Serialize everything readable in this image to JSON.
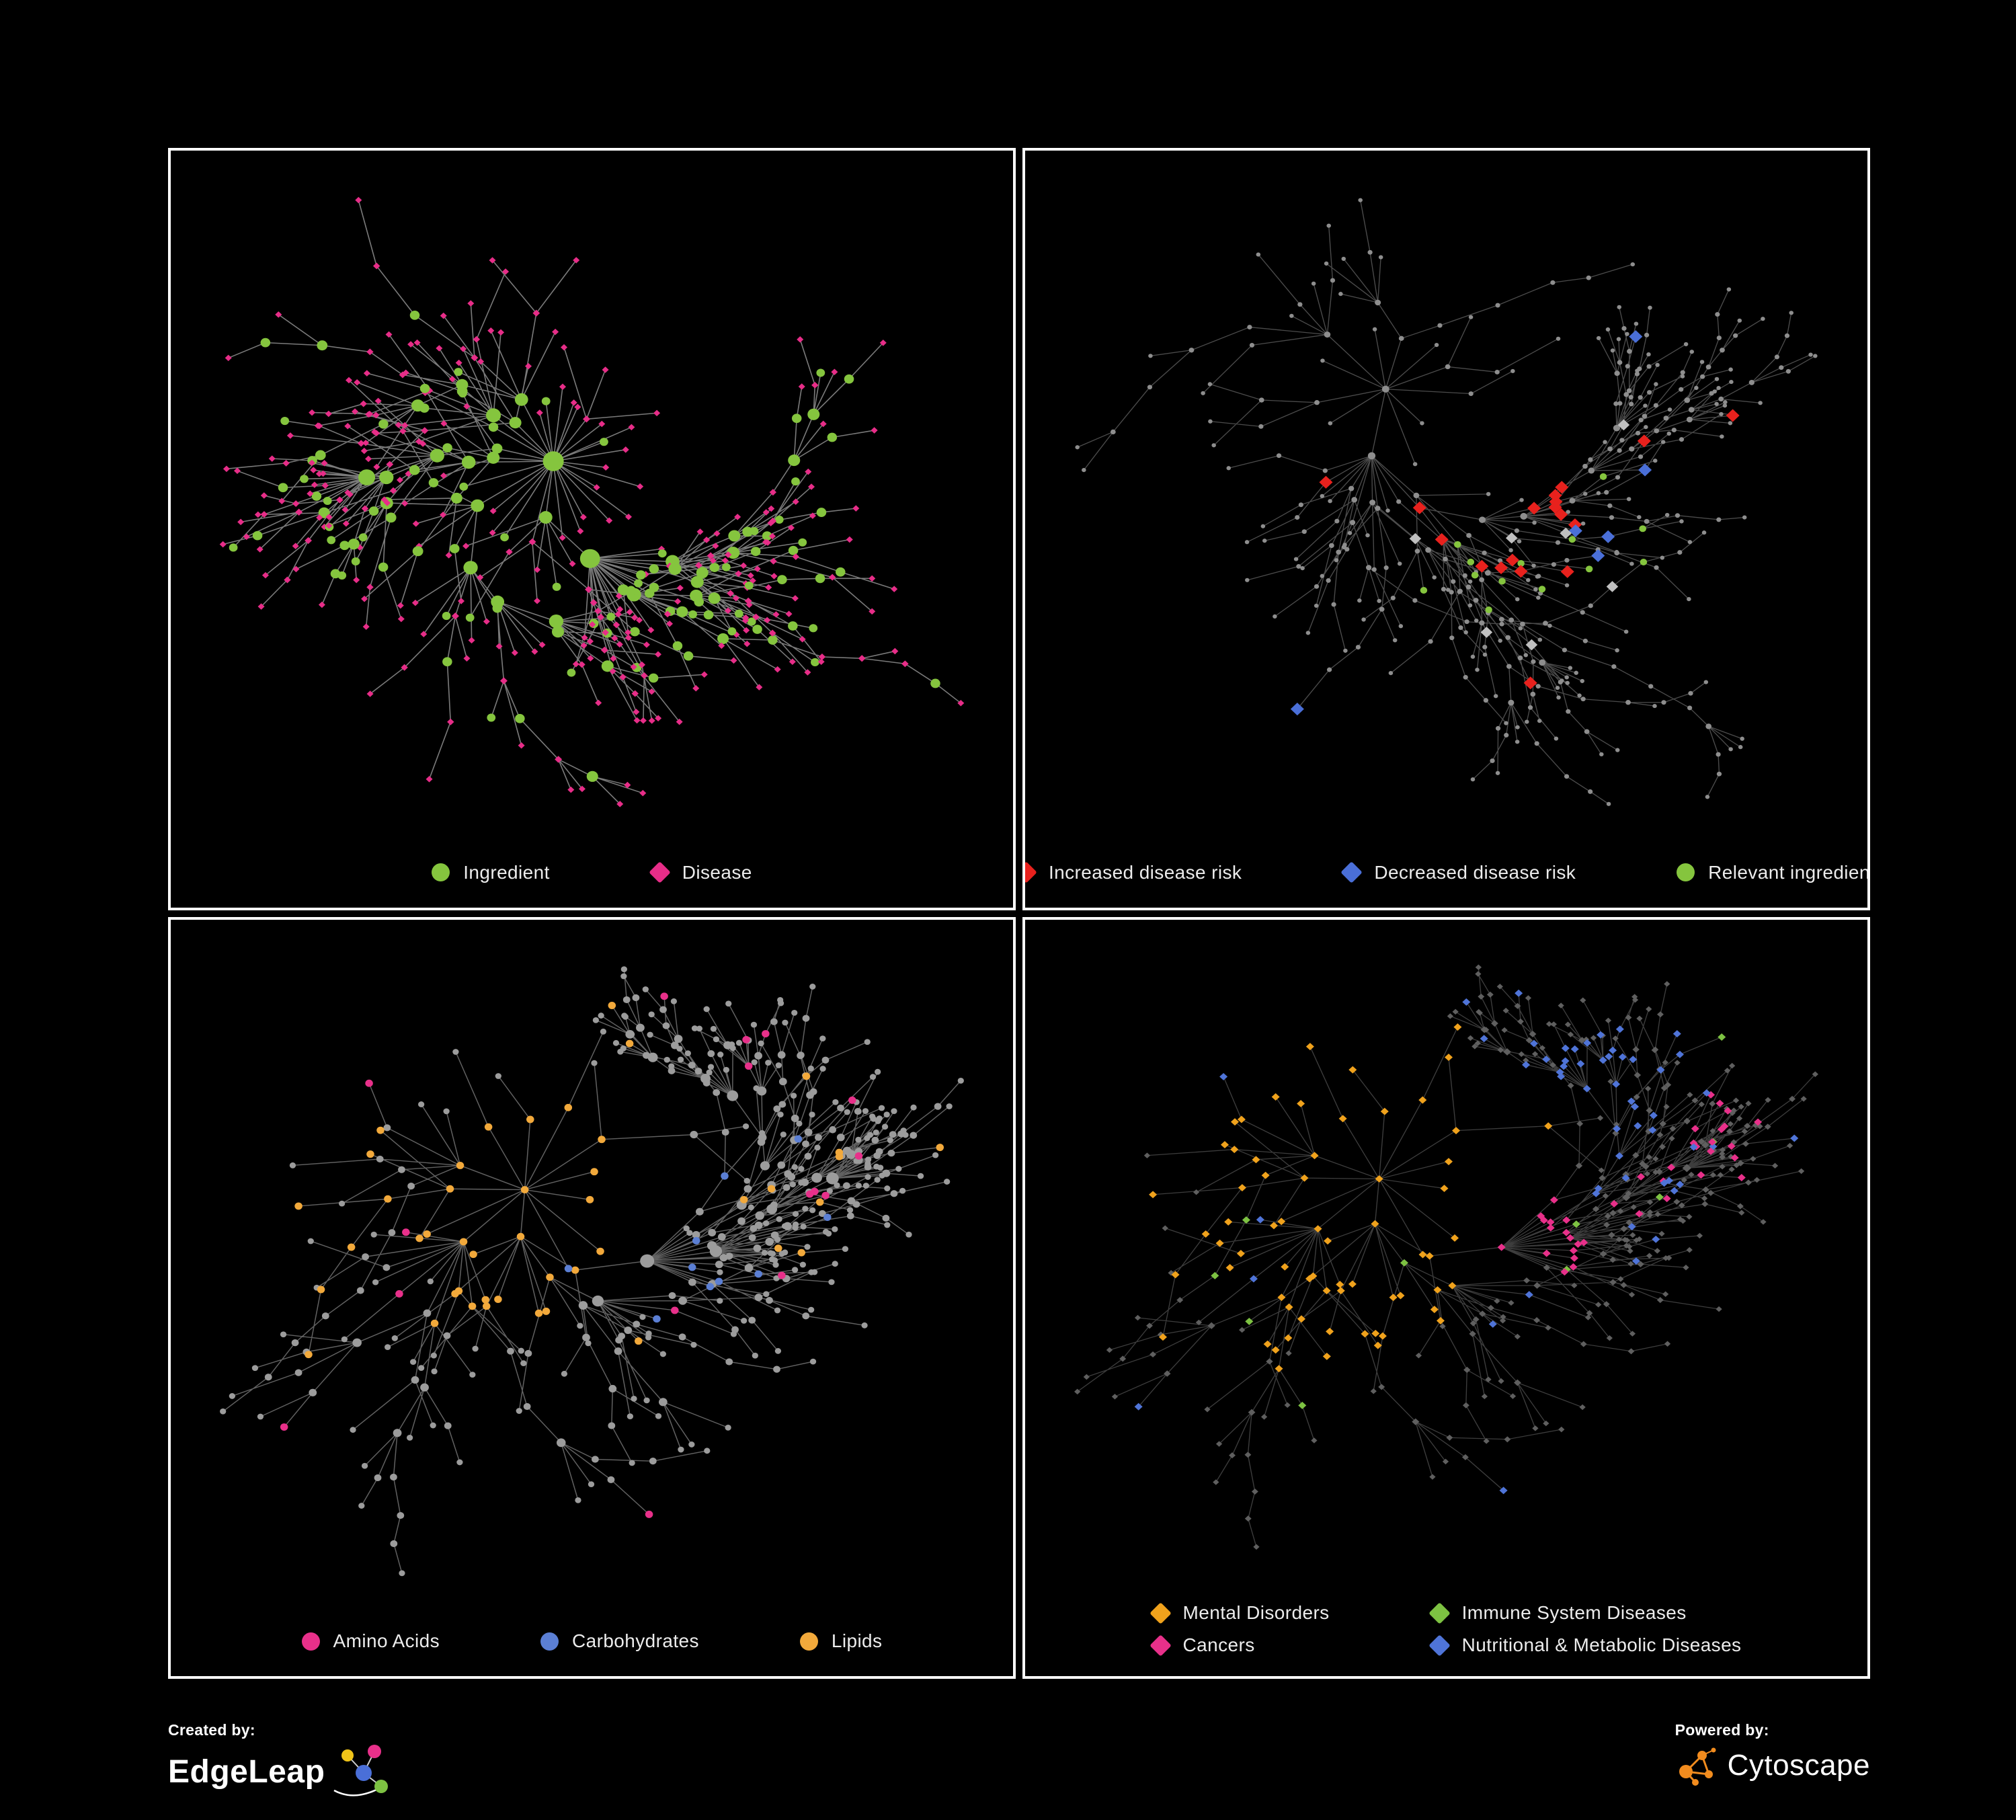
{
  "branding": {
    "created_by_label": "Created by:",
    "created_by_name": "EdgeLeap",
    "powered_by_label": "Powered by:",
    "powered_by_name": "Cytoscape"
  },
  "panels": [
    {
      "legend": [
        {
          "label": "Ingredient",
          "shape": "circle",
          "color": "#85c53e"
        },
        {
          "label": "Disease",
          "shape": "diamond",
          "color": "#e72d88"
        }
      ],
      "network": {
        "seed": 7,
        "node_count": 430,
        "chain_prob": 0.18,
        "edge_len": 90,
        "decay": 0.92,
        "edge_color": "#8f8f8f",
        "edge_opacity": 0.85,
        "edge_width": 1.3,
        "assign_mode": "leaf-hub",
        "groups": [
          {
            "shape": "circle",
            "color": "#85c53e",
            "size": 3.4,
            "size_by_degree": 1.7
          },
          {
            "shape": "diamond",
            "color": "#e72d88",
            "size": 3.6,
            "size_by_degree": 0.4
          }
        ],
        "leaf_group": 1,
        "hub_group": 0,
        "hub_degree": 5,
        "leaf_alt_prob": 0.14,
        "mid_split": 0.5
      }
    },
    {
      "legend": [
        {
          "label": "Increased disease risk",
          "shape": "diamond",
          "color": "#e8211d"
        },
        {
          "label": "Decreased disease risk",
          "shape": "diamond",
          "color": "#4a6fd8"
        },
        {
          "label": "Relevant ingredient",
          "shape": "circle",
          "color": "#85c53e"
        }
      ],
      "network": {
        "seed": 19,
        "node_count": 400,
        "chain_prob": 0.42,
        "edge_len": 95,
        "decay": 0.93,
        "edge_color": "#7d7d7d",
        "edge_opacity": 0.6,
        "edge_width": 1.1,
        "assign_mode": "highlight",
        "base": {
          "shape": "circle",
          "color": "#8e8e8e",
          "size": 1.9,
          "size_by_degree": 0.7
        },
        "groups": [
          {
            "shape": "diamond",
            "color": "#e8211d",
            "size": 8,
            "count": 20,
            "placement": "center"
          },
          {
            "shape": "diamond",
            "color": "#e8211d",
            "size": 8,
            "count": 5,
            "placement": "scatter"
          },
          {
            "shape": "diamond",
            "color": "#4a6fd8",
            "size": 8,
            "count": 6,
            "placement": "center"
          },
          {
            "shape": "diamond",
            "color": "#4a6fd8",
            "size": 8,
            "count": 2,
            "placement": "scatter"
          },
          {
            "shape": "circle",
            "color": "#85c53e",
            "size": 4.2,
            "count": 16,
            "placement": "center"
          },
          {
            "shape": "diamond",
            "color": "#c0c0c0",
            "size": 7,
            "count": 7,
            "placement": "center"
          }
        ]
      }
    },
    {
      "legend": [
        {
          "label": "Amino Acids",
          "shape": "circle",
          "color": "#e8308a"
        },
        {
          "label": "Carbohydrates",
          "shape": "circle",
          "color": "#5b7fd4"
        },
        {
          "label": "Lipids",
          "shape": "circle",
          "color": "#f2a93b"
        }
      ],
      "network": {
        "seed": 33,
        "node_count": 440,
        "chain_prob": 0.2,
        "edge_len": 90,
        "decay": 0.92,
        "edge_color": "#8a8a8a",
        "edge_opacity": 0.7,
        "edge_width": 1.2,
        "assign_mode": "highlight",
        "base": {
          "shape": "circle",
          "color": "#9c9c9c",
          "size": 2.3,
          "size_by_degree": 1.4
        },
        "groups": [
          {
            "shape": "circle",
            "color": "#f2a93b",
            "size": 4.6,
            "count": 34,
            "placement": "branch"
          },
          {
            "shape": "circle",
            "color": "#f2a93b",
            "size": 4.6,
            "count": 16,
            "placement": "scatter"
          },
          {
            "shape": "circle",
            "color": "#e8308a",
            "size": 4.6,
            "count": 16,
            "placement": "scatter"
          },
          {
            "shape": "circle",
            "color": "#5b7fd4",
            "size": 4.6,
            "count": 10,
            "placement": "center"
          }
        ]
      }
    },
    {
      "legend": [
        {
          "label": "Mental Disorders",
          "shape": "diamond",
          "color": "#f0a21c"
        },
        {
          "label": "Immune System Diseases",
          "shape": "diamond",
          "color": "#7dc242"
        },
        {
          "label": "Cancers",
          "shape": "diamond",
          "color": "#e8308a"
        },
        {
          "label": "Nutritional & Metabolic Diseases",
          "shape": "diamond",
          "color": "#4f74d8"
        }
      ],
      "network": {
        "seed": 33,
        "node_count": 440,
        "chain_prob": 0.2,
        "edge_len": 90,
        "decay": 0.92,
        "edge_color": "#6f6f6f",
        "edge_opacity": 0.55,
        "edge_width": 1.1,
        "assign_mode": "highlight",
        "base": {
          "shape": "diamond",
          "color": "#5f5f5f",
          "size": 3.1,
          "size_by_degree": 0.6
        },
        "groups": [
          {
            "shape": "diamond",
            "color": "#f0a21c",
            "size": 4.8,
            "count": 70,
            "placement": "branch"
          },
          {
            "shape": "diamond",
            "color": "#e8308a",
            "size": 4.8,
            "count": 40,
            "placement": "branch"
          },
          {
            "shape": "diamond",
            "color": "#4f74d8",
            "size": 4.8,
            "count": 30,
            "placement": "branch"
          },
          {
            "shape": "diamond",
            "color": "#4f74d8",
            "size": 4.8,
            "count": 28,
            "placement": "scatter"
          },
          {
            "shape": "diamond",
            "color": "#7dc242",
            "size": 4.8,
            "count": 10,
            "placement": "scatter"
          }
        ]
      }
    }
  ]
}
